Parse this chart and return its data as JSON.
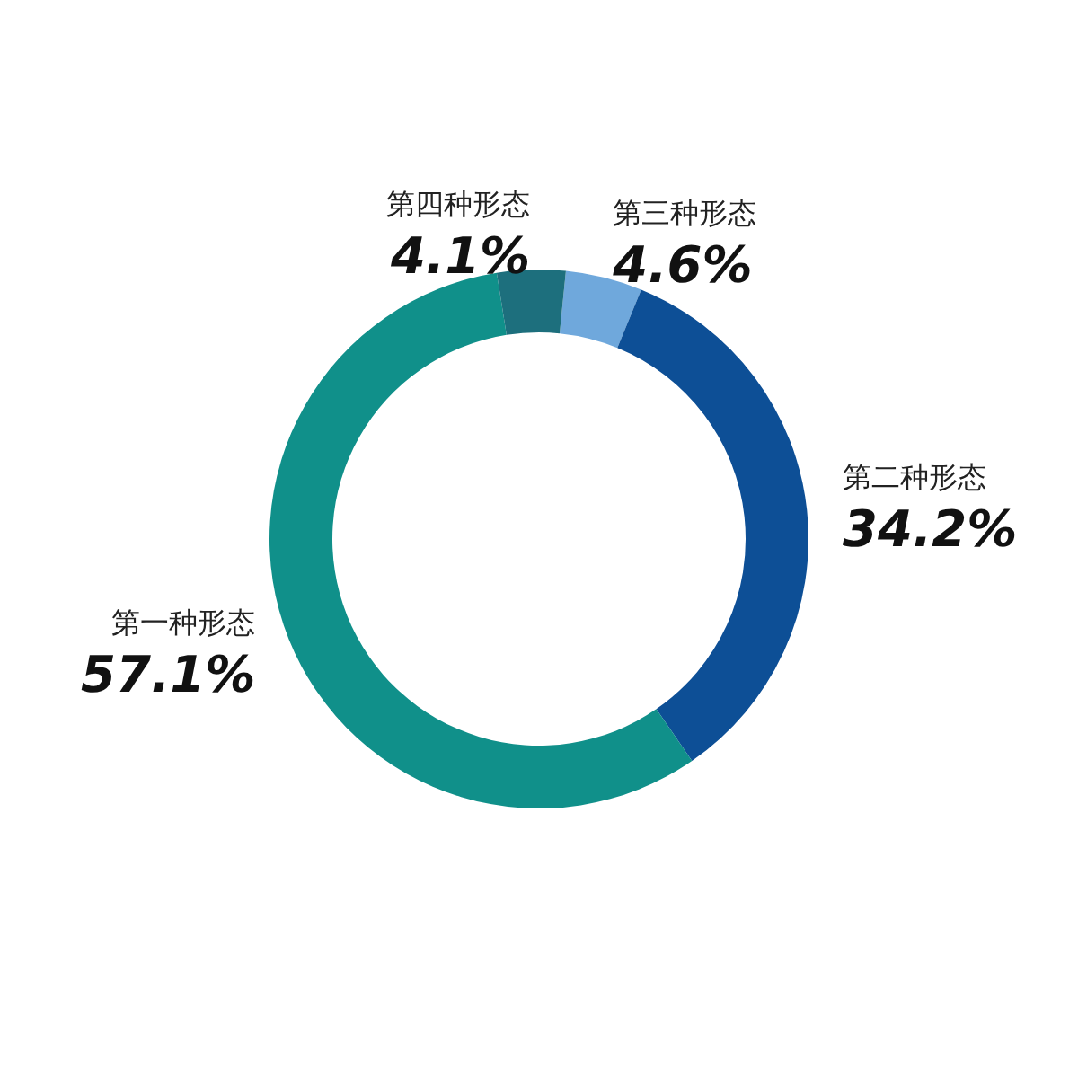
{
  "chart_data": {
    "type": "donut",
    "categories": [
      "第三种形态",
      "第二种形态",
      "第一种形态",
      "第四种形态"
    ],
    "values": [
      4.6,
      34.2,
      57.1,
      4.1
    ],
    "colors": [
      "#6fa8dc",
      "#0d4f96",
      "#10908a",
      "#1d6f7d"
    ],
    "value_labels": [
      "4.6%",
      "34.2%",
      "57.1%",
      "4.1%"
    ],
    "legend": false
  }
}
